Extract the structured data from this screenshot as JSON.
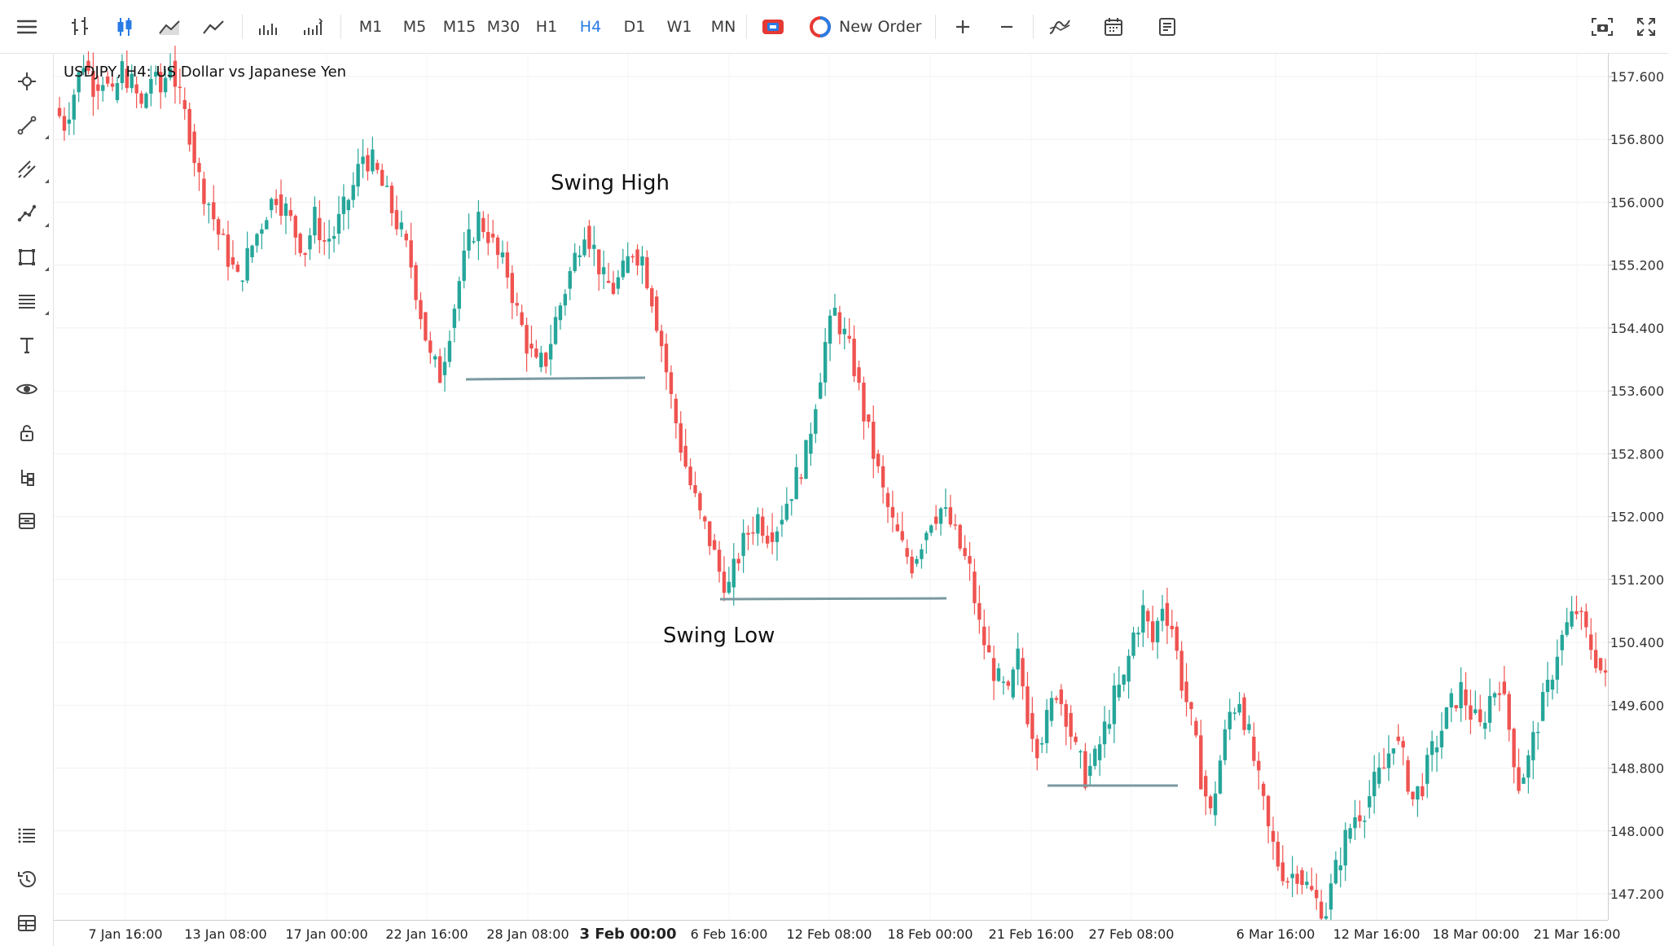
{
  "toolbar": {
    "timeframes": [
      "M1",
      "M5",
      "M15",
      "M30",
      "H1",
      "H4",
      "D1",
      "W1",
      "MN"
    ],
    "active_timeframe": "H4",
    "new_order_label": "New Order"
  },
  "chart": {
    "title": "USDJPY, H4: US Dollar vs Japanese Yen",
    "annotations": {
      "swing_high": "Swing High",
      "swing_low": "Swing Low"
    },
    "price_labels": [
      "157.600",
      "156.800",
      "156.000",
      "155.200",
      "154.400",
      "153.600",
      "152.800",
      "152.000",
      "151.200",
      "150.400",
      "149.600",
      "148.800",
      "148.000",
      "147.200"
    ],
    "time_labels": [
      "7 Jan 16:00",
      "13 Jan 08:00",
      "17 Jan 00:00",
      "22 Jan 16:00",
      "28 Jan 08:00",
      "3 Feb 00:00",
      "6 Feb 16:00",
      "12 Feb 08:00",
      "18 Feb 00:00",
      "21 Feb 16:00",
      "27 Feb 08:00",
      "6 Mar 16:00",
      "12 Mar 16:00",
      "18 Mar 00:00",
      "21 Mar 16:00"
    ],
    "bold_time_label": "3 Feb 00:00",
    "colors": {
      "bull": "#26a69a",
      "bear": "#ef5350",
      "level_line": "#7a9aa0",
      "active": "#2a7be4"
    }
  },
  "chart_data": {
    "type": "candlestick",
    "symbol": "USDJPY",
    "timeframe": "H4",
    "ylim": [
      146.9,
      158.0
    ],
    "price_ticks": [
      157.6,
      156.8,
      156.0,
      155.2,
      154.4,
      153.6,
      152.8,
      152.0,
      151.2,
      150.4,
      149.6,
      148.8,
      148.0,
      147.2
    ],
    "close_path": [
      157.0,
      157.4,
      157.8,
      157.5,
      157.6,
      157.3,
      157.7,
      157.5,
      157.2,
      157.6,
      157.4,
      157.8,
      157.3,
      156.9,
      156.3,
      156.0,
      155.6,
      155.3,
      155.0,
      155.3,
      155.6,
      155.9,
      156.1,
      155.9,
      155.6,
      155.4,
      155.8,
      155.5,
      155.6,
      155.9,
      156.2,
      156.6,
      156.5,
      156.2,
      155.9,
      155.6,
      155.2,
      154.6,
      154.0,
      153.8,
      154.4,
      155.0,
      155.5,
      155.8,
      155.6,
      155.3,
      155.1,
      154.6,
      154.2,
      153.9,
      154.0,
      154.5,
      154.9,
      155.3,
      155.7,
      155.4,
      155.0,
      154.9,
      155.1,
      155.4,
      155.3,
      154.8,
      154.2,
      153.5,
      152.9,
      152.4,
      152.0,
      151.7,
      151.3,
      151.1,
      151.5,
      151.8,
      152.0,
      151.8,
      151.9,
      152.2,
      152.5,
      152.8,
      153.5,
      154.2,
      154.6,
      154.3,
      153.9,
      153.3,
      152.8,
      152.3,
      151.9,
      151.6,
      151.4,
      151.7,
      152.0,
      152.1,
      151.9,
      151.6,
      151.3,
      150.6,
      150.2,
      149.9,
      149.7,
      150.2,
      149.5,
      149.1,
      149.4,
      149.8,
      149.5,
      149.0,
      148.7,
      148.9,
      149.3,
      149.7,
      149.9,
      150.5,
      150.8,
      150.4,
      150.9,
      150.6,
      149.9,
      149.4,
      148.7,
      148.2,
      148.9,
      149.5,
      149.7,
      149.2,
      148.6,
      148.0,
      147.6,
      147.4,
      147.5,
      147.3,
      147.1,
      147.0,
      147.5,
      147.9,
      148.2,
      148.3,
      148.6,
      148.8,
      149.2,
      148.9,
      148.4,
      148.6,
      149.0,
      149.3,
      149.6,
      149.8,
      149.5,
      149.3,
      149.7,
      149.9,
      149.3,
      148.6,
      148.9,
      149.4,
      149.8,
      150.3,
      150.6,
      150.8,
      150.5,
      150.2,
      149.9
    ]
  }
}
